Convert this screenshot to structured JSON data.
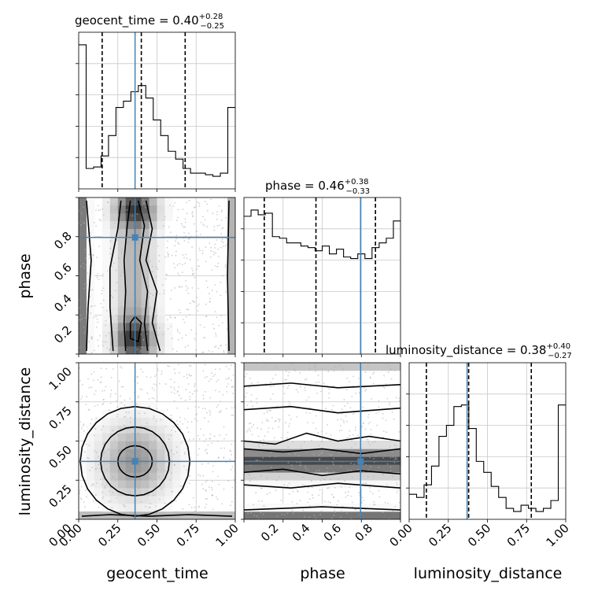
{
  "chart_data": {
    "type": "corner",
    "parameters": [
      "geocent_time",
      "phase",
      "luminosity_distance"
    ],
    "injection": {
      "geocent_time": 0.36,
      "phase": 0.745,
      "luminosity_distance": 0.37
    },
    "colors": {
      "injection": "#4682b4",
      "lines": "#000000",
      "grid": "#c8c8c8"
    },
    "grid": true,
    "panels": {
      "geocent_time": {
        "title_prefix": "geocent_time = 0.40",
        "title_sup": "+0.28",
        "title_sub": "−0.25",
        "range": [
          0,
          1
        ],
        "quantiles": [
          0.15,
          0.4,
          0.68
        ],
        "histogram": [
          0.92,
          0.13,
          0.14,
          0.21,
          0.34,
          0.52,
          0.56,
          0.62,
          0.66,
          0.58,
          0.44,
          0.34,
          0.24,
          0.19,
          0.13,
          0.1,
          0.1,
          0.09,
          0.08,
          0.1,
          0.52
        ]
      },
      "phase": {
        "title_prefix": "phase = 0.46",
        "title_sup": "+0.38",
        "title_sub": "−0.33",
        "range": [
          0,
          1
        ],
        "quantiles": [
          0.13,
          0.46,
          0.84
        ],
        "histogram": [
          0.88,
          0.92,
          0.89,
          0.9,
          0.75,
          0.74,
          0.71,
          0.71,
          0.69,
          0.68,
          0.66,
          0.69,
          0.64,
          0.67,
          0.62,
          0.61,
          0.64,
          0.61,
          0.68,
          0.71,
          0.74,
          0.85
        ]
      },
      "luminosity_distance": {
        "title_prefix": "luminosity_distance = 0.38",
        "title_sup": "+0.40",
        "title_sub": "−0.27",
        "range": [
          0,
          1
        ],
        "quantiles": [
          0.11,
          0.38,
          0.78
        ],
        "histogram": [
          0.16,
          0.14,
          0.22,
          0.34,
          0.53,
          0.6,
          0.72,
          0.73,
          0.58,
          0.37,
          0.3,
          0.21,
          0.14,
          0.07,
          0.05,
          0.09,
          0.07,
          0.05,
          0.07,
          0.12,
          0.73
        ]
      }
    },
    "x_ticks": [
      0.0,
      0.25,
      0.5,
      0.75,
      1.0
    ],
    "x_tick_labels": [
      "0.00",
      "0.25",
      "0.50",
      "0.75",
      "1.00"
    ],
    "phase_y_ticks": [
      0.2,
      0.4,
      0.6,
      0.8
    ],
    "phase_y_tick_labels": [
      "0.2",
      "0.4",
      "0.6",
      "0.8"
    ],
    "phase_x_ticks": [
      0.2,
      0.4,
      0.6,
      0.8
    ],
    "phase_x_tick_labels": [
      "0.2",
      "0.4",
      "0.6",
      "0.8"
    ],
    "xlabel_col1": "geocent_time",
    "xlabel_col2": "phase",
    "xlabel_col3": "luminosity_distance",
    "ylabel_row2": "phase",
    "ylabel_row3": "luminosity_distance"
  }
}
